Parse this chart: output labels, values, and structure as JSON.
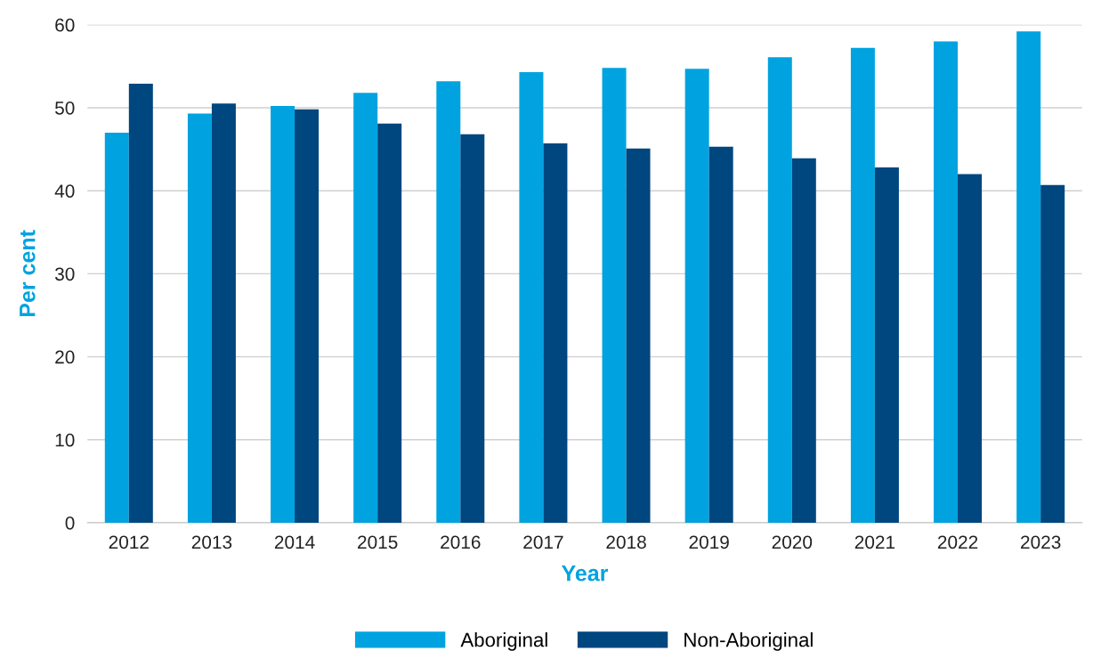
{
  "chart_data": {
    "type": "bar",
    "xlabel": "Year",
    "ylabel": "Per cent",
    "categories": [
      "2012",
      "2013",
      "2014",
      "2015",
      "2016",
      "2017",
      "2018",
      "2019",
      "2020",
      "2021",
      "2022",
      "2023"
    ],
    "series": [
      {
        "name": "Aboriginal",
        "color": "#00a3e0",
        "values": [
          47.0,
          49.3,
          50.2,
          51.8,
          53.2,
          54.3,
          54.8,
          54.7,
          56.1,
          57.2,
          58.0,
          59.2
        ]
      },
      {
        "name": "Non-Aboriginal",
        "color": "#00467f",
        "values": [
          52.9,
          50.5,
          49.8,
          48.1,
          46.8,
          45.7,
          45.1,
          45.3,
          43.9,
          42.8,
          42.0,
          40.7
        ]
      }
    ],
    "ylim": [
      0,
      60
    ],
    "yticks": [
      0,
      10,
      20,
      30,
      40,
      50,
      60
    ],
    "grid": "y",
    "legend": "bottom"
  }
}
